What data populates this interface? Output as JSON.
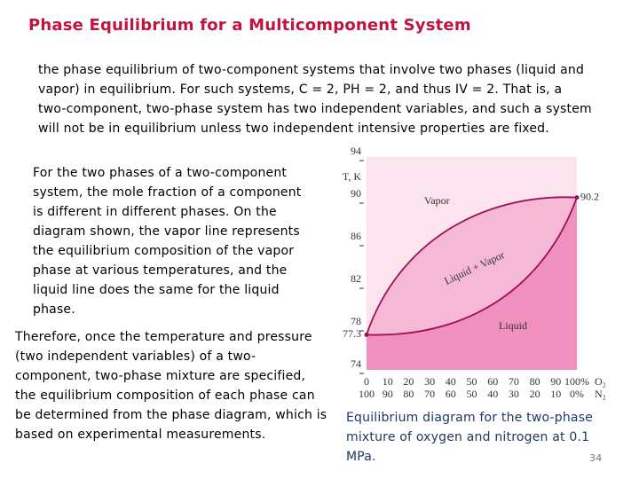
{
  "title": "Phase Equilibrium for a Multicomponent System",
  "paragraphs": [
    "the phase equilibrium of two-component systems that involve two phases (liquid and vapor) in equilibrium. For such systems, C = 2, PH = 2, and thus IV = 2. That is, a two-component, two-phase system has two independent variables, and such a system will not be in equilibrium unless two independent intensive properties are fixed.",
    "For the two phases of a two-component system, the mole fraction of a component is different in different phases. On the diagram shown, the vapor line represents the equilibrium composition of the vapor phase at various temperatures, and the liquid line does the same for the liquid phase.",
    "Therefore, once the temperature and pressure (two independent variables) of a two-component, two-phase mixture are specified, the equilibrium composition of each phase can be determined from the phase diagram, which is based on experimental measurements."
  ],
  "caption": "Equilibrium diagram for the two-phase mixture of oxygen and nitrogen at 0.1 MPa.",
  "page_number": "34",
  "figure": {
    "y_label": "T, K",
    "ylim": [
      74,
      94
    ],
    "yticks": [
      74,
      78,
      82,
      86,
      90,
      94
    ],
    "xlim": [
      0,
      100
    ],
    "o2_ticks": [
      0,
      10,
      20,
      30,
      40,
      50,
      60,
      70,
      80,
      90,
      {
        "value": 100,
        "label": "100%"
      }
    ],
    "n2_ticks": [
      100,
      90,
      80,
      70,
      60,
      50,
      40,
      30,
      20,
      10,
      {
        "value": 0,
        "label": "0%"
      }
    ],
    "o2_label": "O₂",
    "n2_label": "N₂",
    "vapor_label": "Vapor",
    "two_phase_label": "Liquid + Vapor",
    "liquid_label": "Liquid",
    "n2_boiling_point": {
      "value": 77.3,
      "label": "77.3"
    },
    "o2_boiling_point": {
      "value": 90.2,
      "label": "90.2"
    }
  }
}
